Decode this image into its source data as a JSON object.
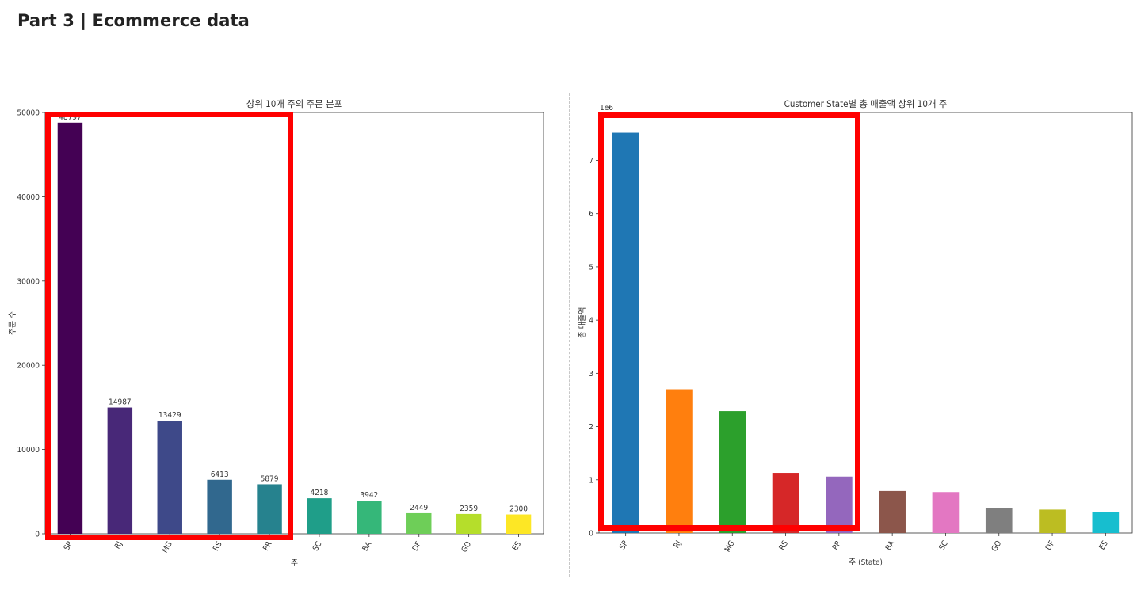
{
  "page": {
    "title": "Part 3  |    Ecommerce data"
  },
  "chart_data": [
    {
      "type": "bar",
      "title": "상위 10개 주의 주문 분포",
      "xlabel": "주",
      "ylabel": "주문 수",
      "categories": [
        "SP",
        "RJ",
        "MG",
        "RS",
        "PR",
        "SC",
        "BA",
        "DF",
        "GO",
        "ES"
      ],
      "values": [
        48797,
        14987,
        13429,
        6413,
        5879,
        4218,
        3942,
        2449,
        2359,
        2300
      ],
      "data_labels": [
        "48797",
        "14987",
        "13429",
        "6413",
        "5879",
        "4218",
        "3942",
        "2449",
        "2359",
        "2300"
      ],
      "ylim": [
        0,
        50000
      ],
      "yticks": [
        "0",
        "10000",
        "20000",
        "30000",
        "40000",
        "50000"
      ],
      "colors": [
        "#440154",
        "#482878",
        "#3e4989",
        "#31688e",
        "#26828e",
        "#1f9e89",
        "#35b779",
        "#6ece58",
        "#b5de2b",
        "#fde725"
      ],
      "grid": false
    },
    {
      "type": "bar",
      "title": "Customer State별 총 매출액 상위 10개 주",
      "xlabel": "주 (State)",
      "ylabel": "총 매출액",
      "scale_label": "1e6",
      "categories": [
        "SP",
        "RJ",
        "MG",
        "RS",
        "PR",
        "BA",
        "SC",
        "GO",
        "DF",
        "ES"
      ],
      "values": [
        7.52,
        2.7,
        2.29,
        1.13,
        1.06,
        0.79,
        0.77,
        0.47,
        0.44,
        0.4
      ],
      "ylim": [
        0,
        7.9
      ],
      "yticks": [
        "0",
        "1",
        "2",
        "3",
        "4",
        "5",
        "6",
        "7"
      ],
      "colors": [
        "#1f77b4",
        "#ff7f0e",
        "#2ca02c",
        "#d62728",
        "#9467bd",
        "#8c564b",
        "#e377c2",
        "#7f7f7f",
        "#bcbd22",
        "#17becf"
      ],
      "grid": false
    }
  ]
}
